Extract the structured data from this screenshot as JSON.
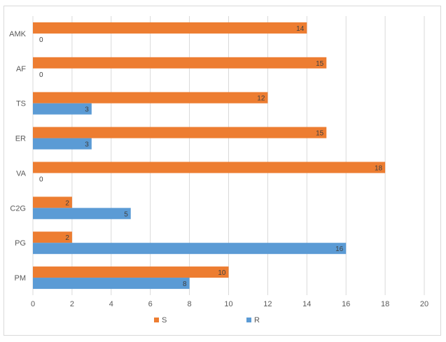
{
  "chart_data": {
    "type": "bar",
    "orientation": "horizontal",
    "categories": [
      "AMK",
      "AF",
      "TS",
      "ER",
      "VA",
      "C2G",
      "PG",
      "PM"
    ],
    "series": [
      {
        "name": "S",
        "color": "#ED7D31",
        "values": [
          14,
          15,
          12,
          15,
          18,
          2,
          2,
          10
        ]
      },
      {
        "name": "R",
        "color": "#5B9BD5",
        "values": [
          0,
          0,
          3,
          3,
          0,
          5,
          16,
          8
        ]
      }
    ],
    "xlim": [
      0,
      20
    ],
    "xticks": [
      "0",
      "2",
      "4",
      "6",
      "8",
      "10",
      "12",
      "14",
      "16",
      "18",
      "20"
    ],
    "grid": true,
    "legend": "bottom",
    "data_labels": true
  }
}
